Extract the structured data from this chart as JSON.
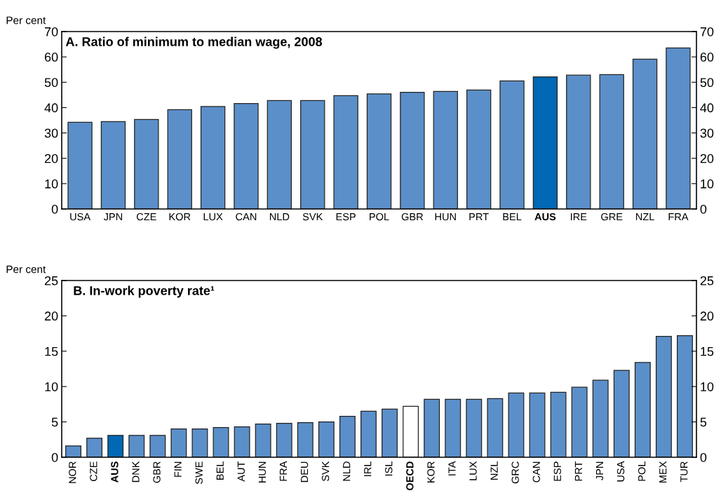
{
  "chart_data": [
    {
      "type": "bar",
      "title": "A. Ratio of minimum to median wage, 2008",
      "ylabel": "Per cent",
      "categories": [
        "USA",
        "JPN",
        "CZE",
        "KOR",
        "LUX",
        "CAN",
        "NLD",
        "SVK",
        "ESP",
        "POL",
        "GBR",
        "HUN",
        "PRT",
        "BEL",
        "AUS",
        "IRE",
        "GRE",
        "NZL",
        "FRA"
      ],
      "values": [
        34.2,
        34.5,
        35.3,
        39.2,
        40.4,
        41.6,
        42.8,
        42.8,
        44.7,
        45.4,
        46.0,
        46.4,
        46.9,
        50.5,
        52.1,
        52.8,
        53.0,
        59.1,
        63.5
      ],
      "colors": [
        "#5b8fc9",
        "#5b8fc9",
        "#5b8fc9",
        "#5b8fc9",
        "#5b8fc9",
        "#5b8fc9",
        "#5b8fc9",
        "#5b8fc9",
        "#5b8fc9",
        "#5b8fc9",
        "#5b8fc9",
        "#5b8fc9",
        "#5b8fc9",
        "#5b8fc9",
        "#0068b4",
        "#5b8fc9",
        "#5b8fc9",
        "#5b8fc9",
        "#5b8fc9"
      ],
      "ylim": [
        0,
        70
      ],
      "yticks": [
        0,
        10,
        20,
        30,
        40,
        50,
        60,
        70
      ],
      "y2lim": [
        0,
        70
      ],
      "y2ticks": [
        0,
        10,
        20,
        30,
        40,
        50,
        60,
        70
      ],
      "grid": false,
      "legend": false
    },
    {
      "type": "bar",
      "title": "B. In-work poverty rate¹",
      "ylabel": "Per cent",
      "categories": [
        "NOR",
        "CZE",
        "AUS",
        "DNK",
        "GBR",
        "FIN",
        "SWE",
        "BEL",
        "AUT",
        "HUN",
        "FRA",
        "DEU",
        "SVK",
        "NLD",
        "IRL",
        "ISL",
        "OECD",
        "KOR",
        "ITA",
        "LUX",
        "NZL",
        "GRC",
        "CAN",
        "ESP",
        "PRT",
        "JPN",
        "USA",
        "POL",
        "MEX",
        "TUR"
      ],
      "values": [
        1.6,
        2.7,
        3.1,
        3.1,
        3.1,
        4.0,
        4.0,
        4.2,
        4.3,
        4.7,
        4.8,
        4.9,
        5.0,
        5.8,
        6.5,
        6.8,
        7.2,
        8.2,
        8.2,
        8.2,
        8.3,
        9.1,
        9.1,
        9.2,
        9.9,
        10.9,
        12.3,
        13.4,
        17.1,
        17.2
      ],
      "colors": [
        "#5b8fc9",
        "#5b8fc9",
        "#0068b4",
        "#5b8fc9",
        "#5b8fc9",
        "#5b8fc9",
        "#5b8fc9",
        "#5b8fc9",
        "#5b8fc9",
        "#5b8fc9",
        "#5b8fc9",
        "#5b8fc9",
        "#5b8fc9",
        "#5b8fc9",
        "#5b8fc9",
        "#5b8fc9",
        "#ffffff",
        "#5b8fc9",
        "#5b8fc9",
        "#5b8fc9",
        "#5b8fc9",
        "#5b8fc9",
        "#5b8fc9",
        "#5b8fc9",
        "#5b8fc9",
        "#5b8fc9",
        "#5b8fc9",
        "#5b8fc9",
        "#5b8fc9",
        "#5b8fc9"
      ],
      "ylim": [
        0,
        25
      ],
      "yticks": [
        0,
        5,
        10,
        15,
        20,
        25
      ],
      "y2lim": [
        0,
        25
      ],
      "y2ticks": [
        0,
        5,
        10,
        15,
        20,
        25
      ],
      "grid": false,
      "legend": false
    }
  ]
}
